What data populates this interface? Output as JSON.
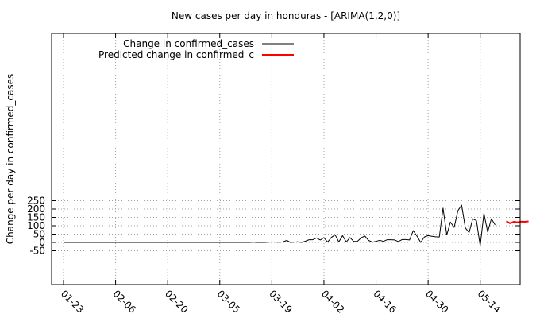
{
  "chart_data": {
    "type": "line",
    "title": "New cases per day in honduras -  [ARIMA(1,2,0)]",
    "xlabel": "",
    "ylabel": "Change per day in confirmed_cases",
    "ylim": [
      -50,
      250
    ],
    "yticks": [
      -50,
      0,
      50,
      100,
      150,
      200,
      250
    ],
    "x_start": "01-23",
    "x_end": "05-29",
    "xtick_labels": [
      "01-23",
      "02-06",
      "02-20",
      "03-05",
      "03-19",
      "04-02",
      "04-16",
      "04-30",
      "05-14"
    ],
    "grid": true,
    "legend_position": "top-left",
    "series": [
      {
        "name": "Change in confirmed_cases",
        "color": "#000000",
        "start_date": "01-23",
        "values": [
          0,
          0,
          0,
          0,
          0,
          0,
          0,
          0,
          0,
          0,
          0,
          0,
          0,
          0,
          0,
          0,
          0,
          0,
          0,
          0,
          0,
          0,
          0,
          0,
          0,
          0,
          0,
          0,
          0,
          0,
          0,
          0,
          0,
          0,
          0,
          0,
          0,
          0,
          0,
          0,
          0,
          0,
          0,
          0,
          0,
          0,
          0,
          0,
          0,
          0,
          0,
          2,
          0,
          0,
          0,
          1,
          3,
          2,
          1,
          3,
          12,
          0,
          2,
          4,
          0,
          7,
          16,
          16,
          27,
          15,
          28,
          2,
          30,
          46,
          3,
          41,
          3,
          29,
          6,
          6,
          28,
          38,
          12,
          2,
          6,
          13,
          6,
          16,
          16,
          15,
          5,
          17,
          17,
          15,
          71,
          38,
          0,
          33,
          41,
          37,
          34,
          33,
          205,
          45,
          122,
          90,
          190,
          224,
          87,
          59,
          142,
          130,
          -20,
          175,
          63,
          142,
          105
        ]
      },
      {
        "name": "Predicted change in confirmed_c",
        "color": "#ff0000",
        "start_date": "05-21",
        "values": [
          127,
          115,
          124,
          121,
          125,
          124,
          126
        ]
      }
    ]
  }
}
